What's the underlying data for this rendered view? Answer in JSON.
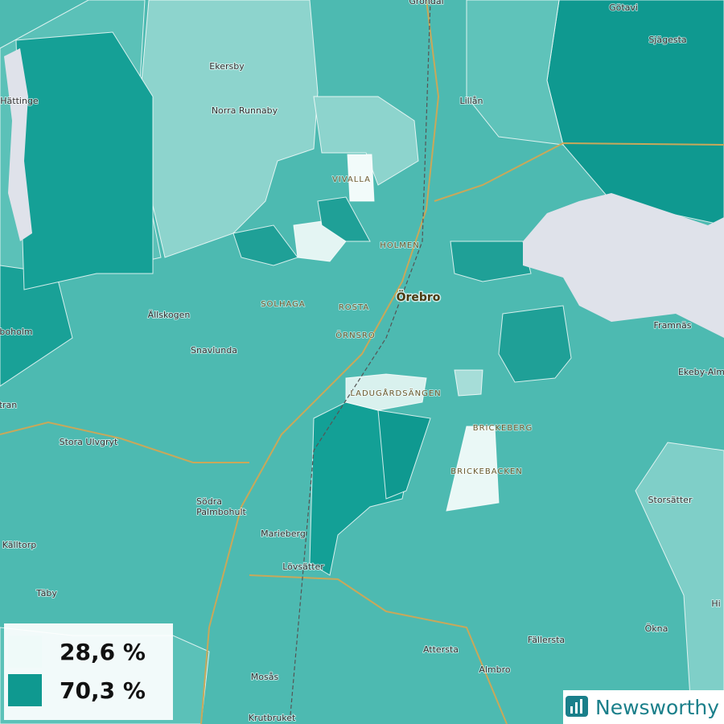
{
  "map": {
    "places": [
      {
        "name": "Gröndal",
        "kind": "place"
      },
      {
        "name": "Götavi",
        "kind": "place"
      },
      {
        "name": "Sjägesta",
        "kind": "place"
      },
      {
        "name": "Ekersby",
        "kind": "place"
      },
      {
        "name": "Hättinge",
        "kind": "place"
      },
      {
        "name": "Lillån",
        "kind": "place"
      },
      {
        "name": "Norra Runnaby",
        "kind": "place"
      },
      {
        "name": "VIVALLA",
        "kind": "district"
      },
      {
        "name": "HOLMEN",
        "kind": "district"
      },
      {
        "name": "Örebro",
        "kind": "city"
      },
      {
        "name": "SOLHAGA",
        "kind": "district"
      },
      {
        "name": "ROSTA",
        "kind": "district"
      },
      {
        "name": "Ällskogen",
        "kind": "place"
      },
      {
        "name": "ÖRNSRO",
        "kind": "district"
      },
      {
        "name": "Framnäs",
        "kind": "place"
      },
      {
        "name": "Snavlunda",
        "kind": "place"
      },
      {
        "name": "Ekeby-Alm",
        "kind": "place"
      },
      {
        "name": "boholm",
        "kind": "place"
      },
      {
        "name": "LADUGÅRDSÄNGEN",
        "kind": "district"
      },
      {
        "name": "tran",
        "kind": "place"
      },
      {
        "name": "BRICKEBERG",
        "kind": "district"
      },
      {
        "name": "Stora Ulvgryt",
        "kind": "place"
      },
      {
        "name": "BRICKEBACKEN",
        "kind": "district"
      },
      {
        "name": "Storsätter",
        "kind": "place"
      },
      {
        "name": "Södra",
        "kind": "place"
      },
      {
        "name": "Palmbohult",
        "kind": "place"
      },
      {
        "name": "Marieberg",
        "kind": "place"
      },
      {
        "name": "Källtorp",
        "kind": "place"
      },
      {
        "name": "Lövsätter",
        "kind": "place"
      },
      {
        "name": "Täby",
        "kind": "place"
      },
      {
        "name": "Hi",
        "kind": "place"
      },
      {
        "name": "Ökna",
        "kind": "place"
      },
      {
        "name": "Fällersta",
        "kind": "place"
      },
      {
        "name": "Attersta",
        "kind": "place"
      },
      {
        "name": "Almbro",
        "kind": "place"
      },
      {
        "name": "Mosås",
        "kind": "place"
      },
      {
        "name": "Krutbruket",
        "kind": "place"
      }
    ],
    "legend": {
      "items": [
        {
          "label": "28,6 %",
          "color": "#effaf9"
        },
        {
          "label": "70,3 %",
          "color": "#0f9990"
        }
      ]
    },
    "brand": "Newsworthy"
  }
}
